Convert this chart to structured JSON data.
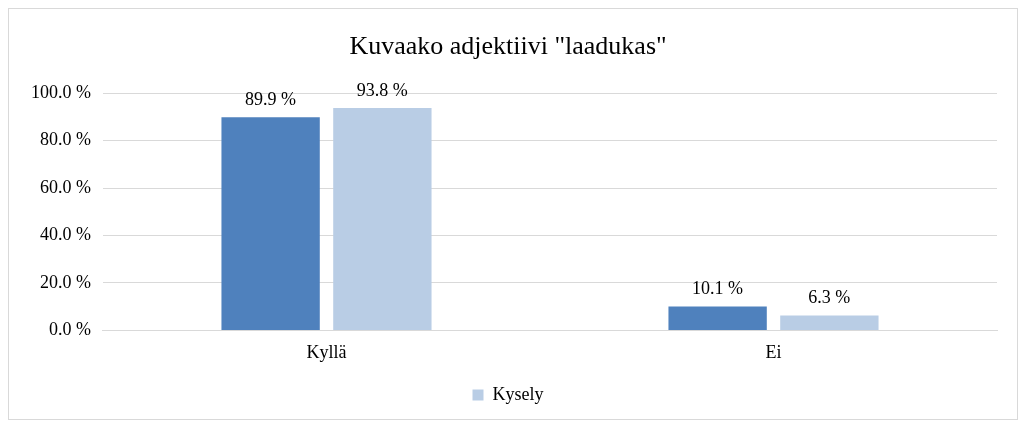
{
  "chart_data": {
    "type": "bar",
    "title": "Kuvaako adjektiivi \"laadukas\"",
    "categories": [
      "Kyllä",
      "Ei"
    ],
    "series": [
      {
        "color": "#4f81bd",
        "values": [
          89.9,
          10.1
        ],
        "value_labels": [
          "89.9 %",
          "10.1 %"
        ]
      },
      {
        "name": "Kysely",
        "color": "#b9cde5",
        "values": [
          93.8,
          6.3
        ],
        "value_labels": [
          "93.8 %",
          "6.3 %"
        ]
      }
    ],
    "ylim": [
      0,
      100
    ],
    "yticks": [
      {
        "value": 0,
        "label": "0.0 %"
      },
      {
        "value": 20,
        "label": "20.0 %"
      },
      {
        "value": 40,
        "label": "40.0 %"
      },
      {
        "value": 60,
        "label": "60.0 %"
      },
      {
        "value": 80,
        "label": "80.0 %"
      },
      {
        "value": 100,
        "label": "100.0 %"
      }
    ],
    "grid": "y",
    "legend": "bottom"
  }
}
